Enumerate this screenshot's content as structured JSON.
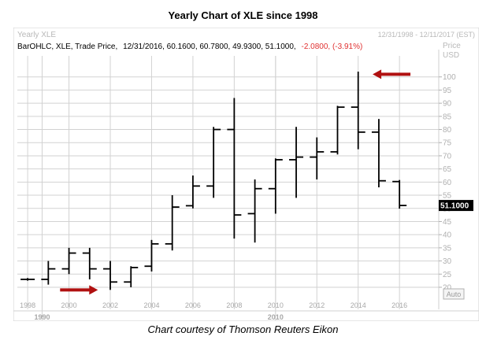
{
  "title": "Yearly Chart of XLE since 1998",
  "caption": "Chart courtesy of Thomson Reuters Eikon",
  "chart_data": {
    "type": "ohlc",
    "instrument_label": "Yearly XLE",
    "date_range": "12/31/1998 - 12/11/2017 (EST)",
    "info_prefix": "BarOHLC, XLE, Trade Price,",
    "info_values": "12/31/2016, 60.1600, 60.7800, 49.9300, 51.1000,",
    "info_change": "-2.0800, (-3.91%)",
    "price_axis_title": "Price",
    "price_axis_unit": "USD",
    "last_price_label": "51.1000",
    "auto_label": "Auto",
    "ylim": [
      17,
      108
    ],
    "y_ticks": [
      20,
      25,
      30,
      35,
      40,
      45,
      50,
      55,
      60,
      65,
      70,
      75,
      80,
      85,
      90,
      95,
      100
    ],
    "xlim": [
      1997.5,
      2017.9
    ],
    "x_ticks": [
      1998,
      2000,
      2002,
      2004,
      2006,
      2008,
      2010,
      2012,
      2014,
      2016
    ],
    "x_tick_labels": [
      "1998",
      "2000",
      "2002",
      "2004",
      "2006",
      "2008",
      "2010",
      "2012",
      "2014",
      "2016"
    ],
    "decade_labels": [
      {
        "x": 1998.7,
        "label": "1990"
      },
      {
        "x": 2010,
        "label": "2010"
      }
    ],
    "minor_grid_lines": [
      1998.7,
      2010
    ],
    "grid": true,
    "colors": {
      "bars": "#000000",
      "change": "#e03030",
      "arrow": "#b01010",
      "grid": "#d2d2d2"
    },
    "bars": [
      {
        "year": 1998,
        "open": 23,
        "high": 23.5,
        "low": 22.5,
        "close": 23
      },
      {
        "year": 1999,
        "open": 23,
        "high": 30,
        "low": 21,
        "close": 27
      },
      {
        "year": 2000,
        "open": 27,
        "high": 35,
        "low": 25,
        "close": 33
      },
      {
        "year": 2001,
        "open": 33,
        "high": 35,
        "low": 23,
        "close": 27
      },
      {
        "year": 2002,
        "open": 27,
        "high": 30,
        "low": 19,
        "close": 22
      },
      {
        "year": 2003,
        "open": 22,
        "high": 28,
        "low": 20,
        "close": 27.5
      },
      {
        "year": 2004,
        "open": 28,
        "high": 38,
        "low": 26,
        "close": 36.5
      },
      {
        "year": 2005,
        "open": 36.5,
        "high": 55,
        "low": 34,
        "close": 50.5
      },
      {
        "year": 2006,
        "open": 51,
        "high": 62.5,
        "low": 50,
        "close": 58.5
      },
      {
        "year": 2007,
        "open": 58.5,
        "high": 81,
        "low": 54,
        "close": 80
      },
      {
        "year": 2008,
        "open": 80,
        "high": 92,
        "low": 38.5,
        "close": 47.5
      },
      {
        "year": 2009,
        "open": 48,
        "high": 61,
        "low": 37,
        "close": 57.5
      },
      {
        "year": 2010,
        "open": 57.5,
        "high": 69,
        "low": 48,
        "close": 68.5
      },
      {
        "year": 2011,
        "open": 68.5,
        "high": 81,
        "low": 54,
        "close": 69.5
      },
      {
        "year": 2012,
        "open": 69.5,
        "high": 77,
        "low": 61,
        "close": 71.5
      },
      {
        "year": 2013,
        "open": 71.5,
        "high": 89,
        "low": 70.5,
        "close": 88.5
      },
      {
        "year": 2014,
        "open": 88.5,
        "high": 102,
        "low": 72.5,
        "close": 79
      },
      {
        "year": 2015,
        "open": 79,
        "high": 84,
        "low": 58,
        "close": 60.5
      },
      {
        "year": 2016,
        "open": 60.2,
        "high": 60.8,
        "low": 49.9,
        "close": 51.1
      }
    ],
    "annotations": [
      {
        "type": "arrow",
        "direction": "left",
        "year": 2014.7,
        "price": 101
      },
      {
        "type": "arrow",
        "direction": "right",
        "year": 2001.4,
        "price": 19
      }
    ]
  }
}
